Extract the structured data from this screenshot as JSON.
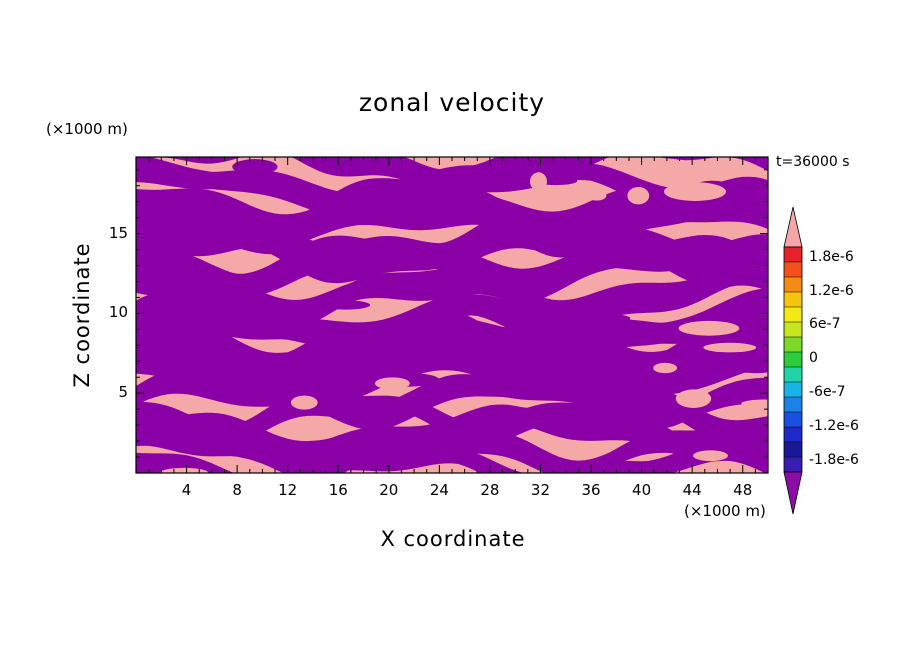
{
  "chart_data": {
    "type": "heatmap",
    "title": "zonal velocity",
    "xlabel": "X coordinate",
    "ylabel": "Z coordinate",
    "x_unit": "(×1000 m)",
    "y_unit": "(×1000 m)",
    "time_label": "t=36000 s",
    "xlim": [
      0,
      50
    ],
    "ylim": [
      0,
      19.8
    ],
    "x_ticks": [
      4,
      8,
      12,
      16,
      20,
      24,
      28,
      32,
      36,
      40,
      44,
      48
    ],
    "y_ticks": [
      5,
      10,
      15
    ],
    "colorbar": {
      "labels": [
        {
          "value": 1.8e-06,
          "text": "1.8e-6"
        },
        {
          "value": 1.2e-06,
          "text": "1.2e-6"
        },
        {
          "value": 6e-07,
          "text": "6e-7"
        },
        {
          "value": 0,
          "text": "0"
        },
        {
          "value": -6e-07,
          "text": "-6e-7"
        },
        {
          "value": -1.2e-06,
          "text": "-1.2e-6"
        },
        {
          "value": -1.8e-06,
          "text": "-1.8e-6"
        }
      ],
      "levels": [
        {
          "color": "#f5a6a6",
          "note": "above max (triangle)"
        },
        {
          "color": "#e8202a"
        },
        {
          "color": "#f2501e"
        },
        {
          "color": "#f58a14"
        },
        {
          "color": "#f5c40f"
        },
        {
          "color": "#f2ea14"
        },
        {
          "color": "#c6e61e"
        },
        {
          "color": "#7ad92a"
        },
        {
          "color": "#2dcc3b"
        },
        {
          "color": "#20d3a8"
        },
        {
          "color": "#19b4e6"
        },
        {
          "color": "#1b82e8"
        },
        {
          "color": "#1a4fe0"
        },
        {
          "color": "#1f28c8"
        },
        {
          "color": "#1b1898"
        },
        {
          "color": "#3a1db0"
        },
        {
          "color": "#8a0ea6",
          "note": "below min (triangle)"
        }
      ]
    },
    "field": {
      "colors": {
        "positive": "#f5a8a8",
        "negative": "#8a00a6"
      },
      "description_levels": "binary field: nearly all values beyond +/-1.8e-6"
    }
  }
}
